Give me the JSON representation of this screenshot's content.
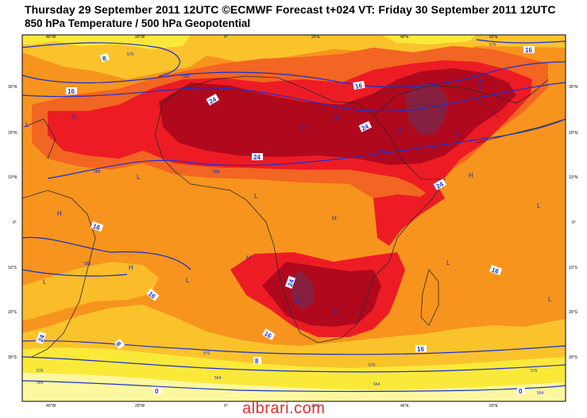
{
  "header": {
    "title_line1": "Thursday 29 September 2011 12UTC ©ECMWF Forecast t+024 VT: Friday 30 September 2011 12UTC",
    "title_line2": "850 hPa Temperature / 500 hPa Geopotential"
  },
  "axes": {
    "lon_ticks_top": [
      "40°W",
      "20°W",
      "0°",
      "20°E",
      "40°E",
      "60°E"
    ],
    "lon_ticks_bottom": [
      "40°W",
      "20°W",
      "0°",
      "20°E",
      "40°E",
      "60°E"
    ],
    "lat_ticks_left": [
      "30°N",
      "20°N",
      "10°N",
      "0°",
      "10°S",
      "20°S",
      "30°S"
    ],
    "lat_ticks_right": [
      "30°N",
      "20°N",
      "10°N",
      "0°",
      "10°S",
      "20°S",
      "30°S"
    ]
  },
  "temperature_labels": [
    "8",
    "16",
    "16",
    "24",
    "24",
    "24",
    "24",
    "24",
    "16",
    "16",
    "16",
    "16",
    "24",
    "16",
    "16",
    "8",
    "8",
    "0",
    "0"
  ],
  "geopotential_labels": [
    "576",
    "576",
    "588",
    "588",
    "588",
    "588",
    "588",
    "588",
    "588",
    "576",
    "576",
    "576",
    "576",
    "564",
    "564",
    "564",
    "564"
  ],
  "pressure_centres": [
    "L",
    "L",
    "L",
    "L",
    "L",
    "L",
    "L",
    "L",
    "H",
    "H",
    "H",
    "H",
    "H",
    "H",
    "H",
    "H",
    "H",
    "H",
    "H",
    "H"
  ],
  "colors": {
    "yellow_pale": "#fdf8a0",
    "yellow": "#fbe93a",
    "gold": "#fac32c",
    "orange": "#f7941d",
    "orange_red": "#f26522",
    "red": "#ed1c24",
    "dark_red": "#b0091e",
    "purple": "#862040",
    "contour_blue": "#1a2fd0",
    "coast": "#2a2a2a"
  },
  "watermark": "albrari.com"
}
